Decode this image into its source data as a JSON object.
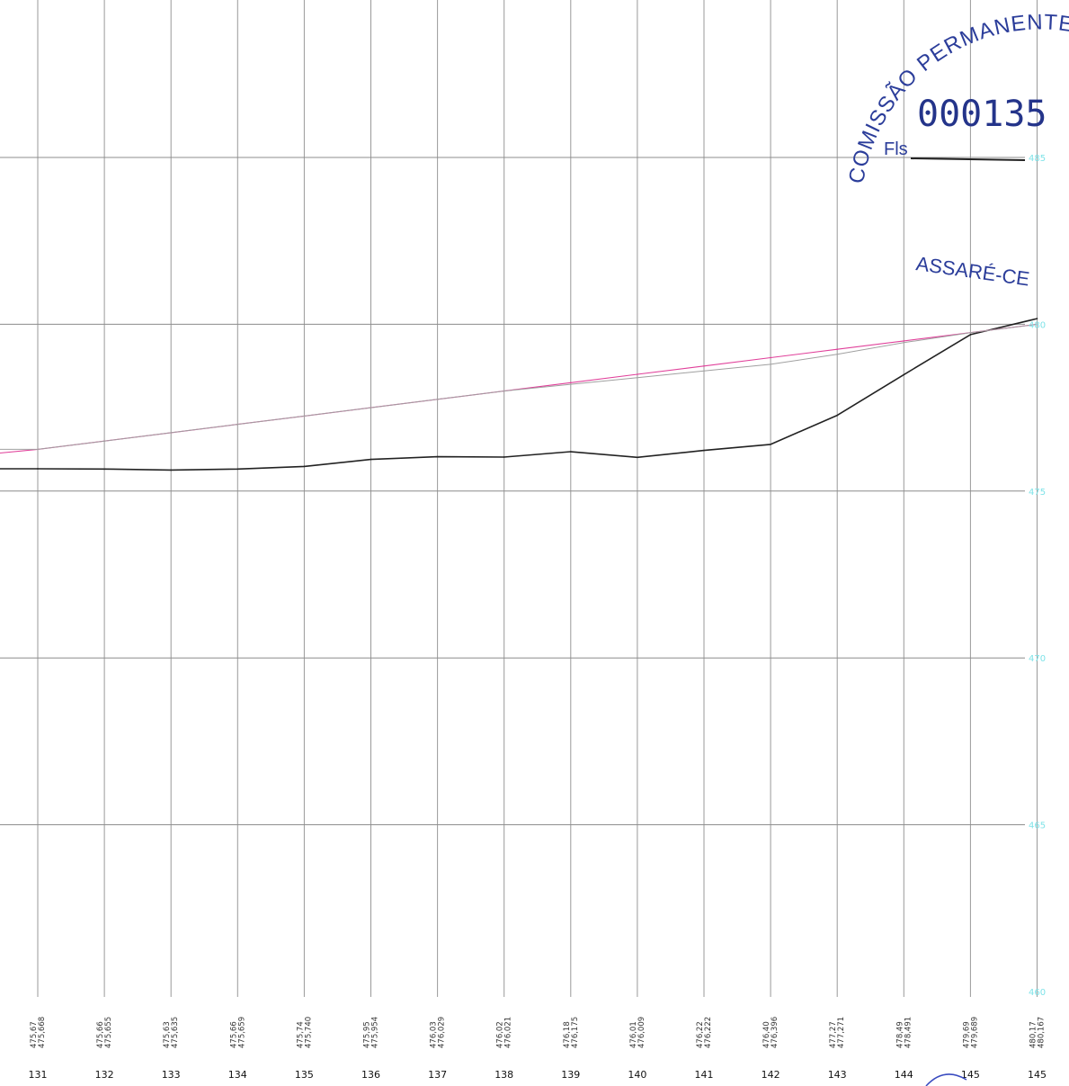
{
  "chart_data": {
    "type": "line",
    "ylim": [
      460,
      485
    ],
    "y_ticks": [
      "485",
      "480",
      "475",
      "470",
      "465",
      "460"
    ],
    "grid": true,
    "stations": [
      "131",
      "132",
      "133",
      "134",
      "135",
      "136",
      "137",
      "138",
      "139",
      "140",
      "141",
      "142",
      "143",
      "144",
      "145",
      "145"
    ],
    "elevation_labels": [
      [
        "475,67",
        "475,668"
      ],
      [
        "475,66",
        "475,655"
      ],
      [
        "475,63",
        "475,635"
      ],
      [
        "475,66",
        "475,659"
      ],
      [
        "475,74",
        "475,740"
      ],
      [
        "475,95",
        "475,954"
      ],
      [
        "476,03",
        "476,029"
      ],
      [
        "476,02",
        "476,021"
      ],
      [
        "476,18",
        "476,175"
      ],
      [
        "476,01",
        "476,009"
      ],
      [
        "476,22",
        "476,222"
      ],
      [
        "476,40",
        "476,396"
      ],
      [
        "477,27",
        "477,271"
      ],
      [
        "478,49",
        "478,491"
      ],
      [
        "479,69",
        "479,689"
      ],
      [
        "480,17",
        "480,167"
      ]
    ],
    "series": [
      {
        "color": "#222222",
        "values": [
          475.67,
          475.66,
          475.63,
          475.66,
          475.74,
          475.95,
          476.03,
          476.02,
          476.18,
          476.01,
          476.22,
          476.4,
          477.27,
          478.49,
          479.69,
          480.17
        ]
      },
      {
        "color": "#e0409a",
        "values": [
          476.25,
          476.5,
          476.75,
          477.0,
          477.25,
          477.5,
          477.75,
          478.0,
          478.25,
          478.5,
          478.75,
          479.0,
          479.25,
          479.5,
          479.75,
          480.0
        ]
      },
      {
        "color": "#a0a0a0",
        "values": [
          476.25,
          476.5,
          476.75,
          477.0,
          477.25,
          477.5,
          477.75,
          478.0,
          478.2,
          478.4,
          478.6,
          478.8,
          479.1,
          479.45,
          479.75,
          480.0
        ]
      }
    ]
  },
  "stamp": {
    "arc_text": "COMISSÃO PERMANENTE DE",
    "number": "000135",
    "fls_label": "Fls",
    "city": "ASSARÉ-CE",
    "color": "#2b3d9a"
  }
}
